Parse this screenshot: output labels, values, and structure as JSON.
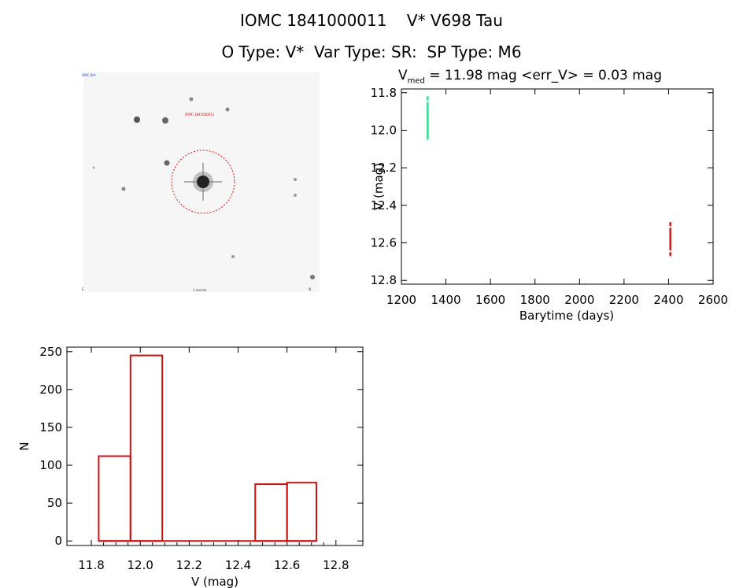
{
  "header": {
    "line1": "IOMC 1841000011    V* V698 Tau",
    "line2": "O Type: V*  Var Type: SR:  SP Type: M6"
  },
  "stats": {
    "v_label": "V",
    "v_sub": "med",
    "text": " = 11.98 mag <err_V> = 0.03 mag"
  },
  "sky_image": {
    "label_top_left": "OMC Ref",
    "label_top_center": "IOMC 1841000011",
    "label_bottom_left": "E",
    "label_bottom_center": "1 arcmin",
    "label_bottom_right": "N"
  },
  "chart_data": [
    {
      "type": "scatter",
      "xlabel": "Barytime (days)",
      "ylabel": "V (mag)",
      "xlim": [
        1200,
        2600
      ],
      "ylim": [
        12.82,
        11.78
      ],
      "y_inverted": true,
      "xticks": [
        "1200",
        "1400",
        "1600",
        "1800",
        "2000",
        "2200",
        "2400",
        "2600"
      ],
      "yticks": [
        "11.8",
        "12.0",
        "12.2",
        "12.4",
        "12.6",
        "12.8"
      ],
      "series": [
        {
          "color": "#22dd88",
          "x": 1318,
          "y_values": [
            11.83,
            11.86,
            11.88,
            11.9,
            11.92,
            11.94,
            11.96,
            11.98,
            12.0,
            12.02,
            12.04
          ]
        },
        {
          "color": "#cc1111",
          "x": 2408,
          "y_values": [
            12.5,
            12.53,
            12.55,
            12.57,
            12.59,
            12.61,
            12.63,
            12.66
          ]
        }
      ]
    },
    {
      "type": "bar",
      "xlabel": "V (mag)",
      "ylabel": "N",
      "xlim": [
        11.7,
        12.91
      ],
      "ylim": [
        -6,
        256
      ],
      "xticks": [
        "11.8",
        "12.0",
        "12.2",
        "12.4",
        "12.6",
        "12.8"
      ],
      "yticks": [
        "0",
        "50",
        "100",
        "150",
        "200",
        "250"
      ],
      "bar_color": "#cc1111",
      "bins": [
        {
          "x0": 11.83,
          "x1": 11.96,
          "value": 112
        },
        {
          "x0": 11.96,
          "x1": 12.09,
          "value": 245
        },
        {
          "x0": 12.47,
          "x1": 12.6,
          "value": 75
        },
        {
          "x0": 12.6,
          "x1": 12.72,
          "value": 77
        }
      ]
    }
  ]
}
